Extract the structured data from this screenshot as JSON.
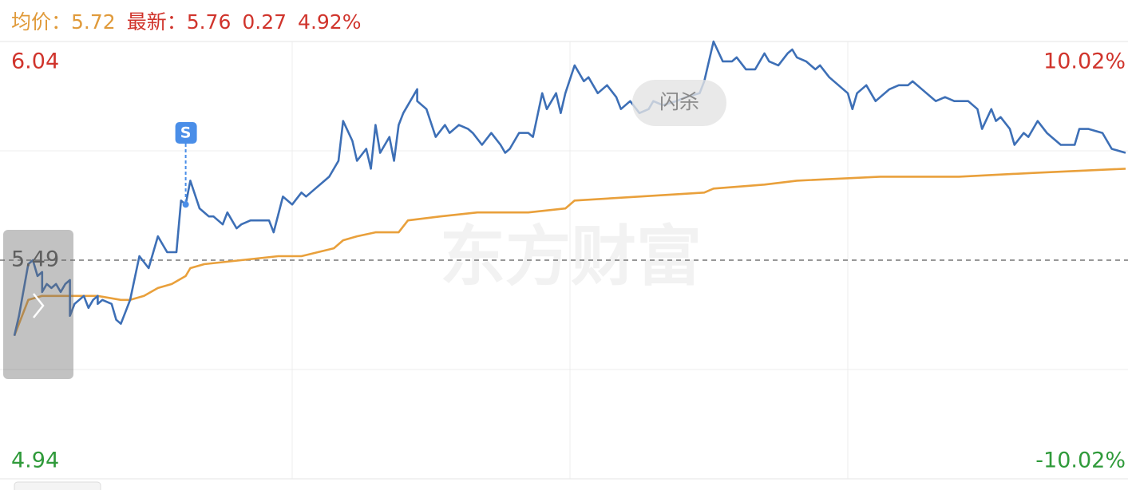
{
  "header": {
    "avg_label": "均价：",
    "avg": "5.72",
    "latest_label": "最新：",
    "latest": "5.76",
    "change": "0.27",
    "change_pct": "4.92%"
  },
  "chart_data": {
    "type": "line",
    "xlim": [
      0,
      240
    ],
    "ylim": [
      4.94,
      6.04
    ],
    "yticks": [
      4.94,
      5.49,
      6.04
    ],
    "y2lim": [
      -10.02,
      10.02
    ],
    "y2ticks": [
      {
        "value": -10.02,
        "label": "-10.02%"
      },
      {
        "value": 10.02,
        "label": "10.02%"
      }
    ],
    "up_color": "#d0342c",
    "down_color": "#2f9a3a",
    "flat_color": "#555555",
    "grid": true,
    "watermark": "东方财富",
    "button_label": "闪杀",
    "signal": {
      "label": "S",
      "x": 37
    },
    "series": [
      {
        "name": "最新",
        "color": "#3d6fb6",
        "x": [
          0,
          1,
          3,
          4,
          5,
          6,
          6,
          7,
          8,
          9,
          10,
          11,
          12,
          12,
          13,
          14,
          15,
          16,
          17,
          18,
          18,
          19,
          21,
          22,
          23,
          24,
          25,
          27,
          29,
          31,
          32,
          33,
          35,
          36,
          37,
          38,
          40,
          42,
          43,
          45,
          46,
          48,
          49,
          51,
          53,
          55,
          56,
          58,
          60,
          62,
          63,
          65,
          67,
          68,
          70,
          71,
          73,
          74,
          76,
          77,
          78,
          79,
          81,
          82,
          83,
          84,
          85,
          87,
          87,
          89,
          91,
          93,
          94,
          96,
          98,
          99,
          101,
          103,
          105,
          106,
          107,
          109,
          111,
          112,
          114,
          115,
          117,
          118,
          119,
          121,
          123,
          124,
          126,
          128,
          130,
          131,
          133,
          135,
          137,
          138,
          140,
          143,
          145,
          148,
          149,
          151,
          153,
          155,
          156,
          158,
          160,
          162,
          163,
          165,
          167,
          168,
          169,
          171,
          173,
          174,
          176,
          178,
          180,
          181,
          182,
          184,
          186,
          187,
          189,
          191,
          193,
          194,
          196,
          198,
          199,
          201,
          203,
          205,
          206,
          208,
          209,
          211,
          212,
          213,
          215,
          216,
          218,
          219,
          221,
          223,
          224,
          226,
          229,
          230,
          232,
          235,
          237,
          240
        ],
        "values": [
          5.3,
          5.35,
          5.48,
          5.49,
          5.45,
          5.46,
          5.41,
          5.43,
          5.42,
          5.43,
          5.41,
          5.43,
          5.44,
          5.35,
          5.38,
          5.39,
          5.4,
          5.37,
          5.39,
          5.4,
          5.38,
          5.39,
          5.38,
          5.34,
          5.33,
          5.36,
          5.39,
          5.5,
          5.47,
          5.55,
          5.53,
          5.51,
          5.51,
          5.64,
          5.63,
          5.69,
          5.62,
          5.6,
          5.6,
          5.58,
          5.61,
          5.57,
          5.58,
          5.59,
          5.59,
          5.59,
          5.56,
          5.65,
          5.63,
          5.66,
          5.65,
          5.67,
          5.69,
          5.7,
          5.74,
          5.84,
          5.79,
          5.74,
          5.77,
          5.72,
          5.83,
          5.76,
          5.8,
          5.74,
          5.83,
          5.86,
          5.88,
          5.92,
          5.89,
          5.87,
          5.8,
          5.83,
          5.81,
          5.83,
          5.82,
          5.81,
          5.78,
          5.81,
          5.78,
          5.76,
          5.77,
          5.81,
          5.81,
          5.8,
          5.91,
          5.87,
          5.91,
          5.86,
          5.91,
          5.98,
          5.94,
          5.95,
          5.91,
          5.93,
          5.9,
          5.87,
          5.89,
          5.86,
          5.87,
          5.89,
          5.88,
          5.89,
          5.9,
          5.91,
          5.94,
          6.04,
          5.99,
          5.99,
          6.0,
          5.97,
          5.97,
          6.01,
          5.99,
          5.98,
          6.01,
          6.02,
          6.0,
          5.99,
          5.97,
          5.98,
          5.95,
          5.93,
          5.91,
          5.87,
          5.91,
          5.93,
          5.89,
          5.9,
          5.92,
          5.93,
          5.93,
          5.94,
          5.92,
          5.9,
          5.89,
          5.9,
          5.89,
          5.89,
          5.89,
          5.87,
          5.82,
          5.87,
          5.84,
          5.85,
          5.82,
          5.78,
          5.81,
          5.8,
          5.84,
          5.81,
          5.8,
          5.78,
          5.78,
          5.82,
          5.82,
          5.81,
          5.77,
          5.76
        ]
      },
      {
        "name": "均价",
        "color": "#e9a03b",
        "x": [
          0,
          1,
          3,
          6,
          11,
          18,
          23,
          25,
          28,
          31,
          34,
          37,
          38,
          41,
          49,
          57,
          62,
          69,
          71,
          74,
          78,
          83,
          85,
          92,
          100,
          111,
          119,
          121,
          135,
          149,
          151,
          162,
          169,
          187,
          204,
          221,
          240
        ],
        "values": [
          5.3,
          5.33,
          5.39,
          5.4,
          5.4,
          5.4,
          5.39,
          5.39,
          5.4,
          5.42,
          5.43,
          5.45,
          5.47,
          5.48,
          5.49,
          5.5,
          5.5,
          5.52,
          5.54,
          5.55,
          5.56,
          5.56,
          5.59,
          5.6,
          5.61,
          5.61,
          5.62,
          5.64,
          5.65,
          5.66,
          5.67,
          5.68,
          5.69,
          5.7,
          5.7,
          5.71,
          5.72
        ]
      }
    ]
  }
}
